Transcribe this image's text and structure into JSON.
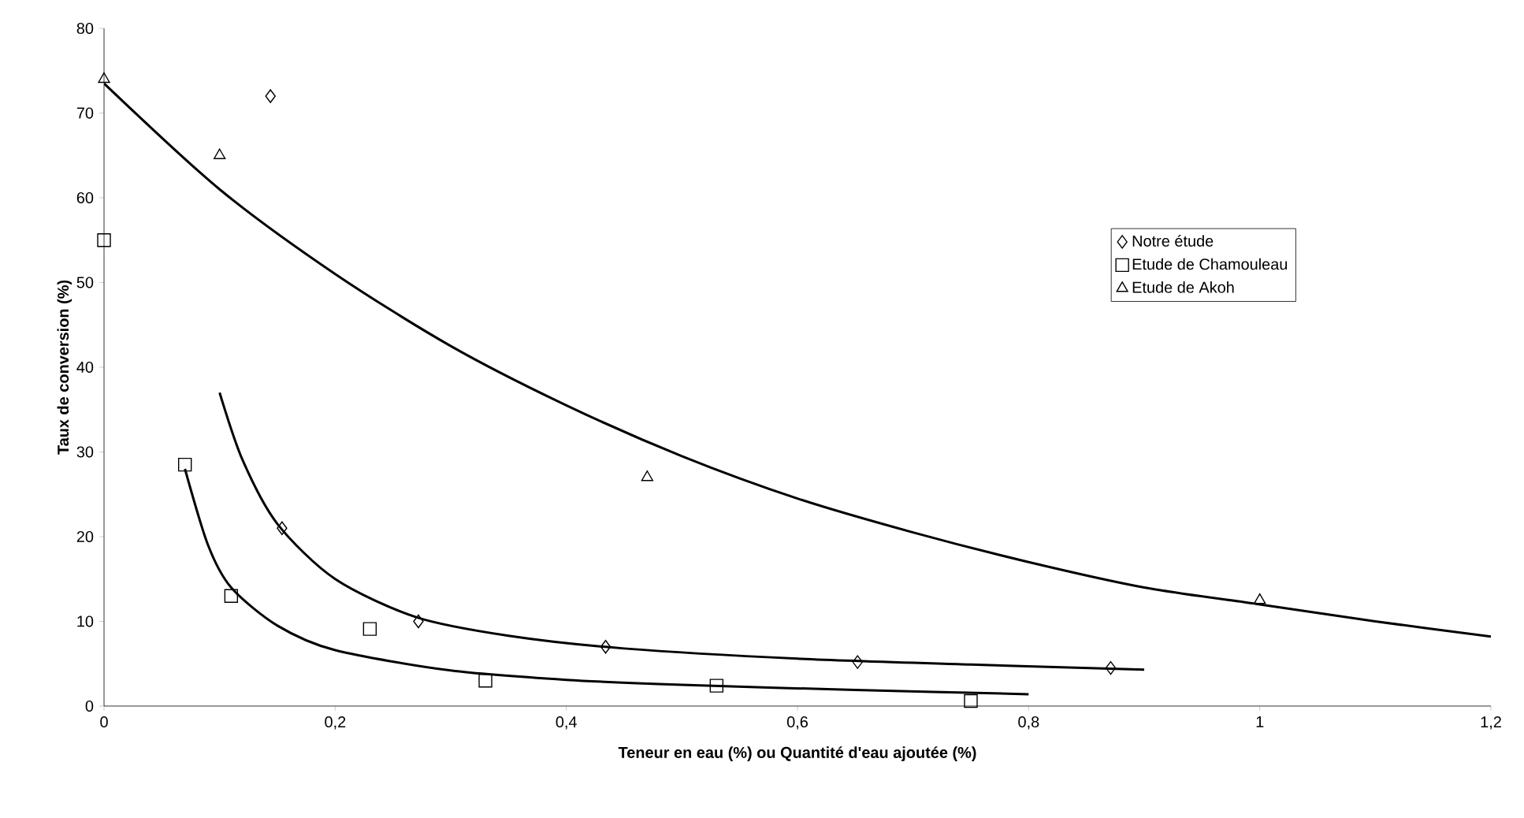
{
  "chart_data": {
    "type": "scatter",
    "xlabel": "Teneur en eau (%) ou Quantité d'eau ajoutée (%)",
    "ylabel": "Taux de conversion (%)",
    "xlim": [
      0,
      1.2
    ],
    "ylim": [
      0,
      80
    ],
    "xticks": [
      0,
      {
        "value": 0.2,
        "label": "0,2"
      },
      {
        "value": 0.4,
        "label": "0,4"
      },
      {
        "value": 0.6,
        "label": "0,6"
      },
      {
        "value": 0.8,
        "label": "0,8"
      },
      1,
      {
        "value": 1.2,
        "label": "1,2"
      }
    ],
    "yticks": [
      0,
      10,
      20,
      30,
      40,
      50,
      60,
      70,
      80
    ],
    "legend": "right",
    "grid": false,
    "series": [
      {
        "name": "Notre étude",
        "marker": "diamond",
        "color": "#000000",
        "x": [
          0.144,
          0.154,
          0.272,
          0.434,
          0.652,
          0.871
        ],
        "values": [
          72,
          21,
          10,
          7,
          5.2,
          4.5
        ]
      },
      {
        "name": "Etude de Chamouleau",
        "marker": "square",
        "color": "#000000",
        "x": [
          0,
          0.07,
          0.11,
          0.23,
          0.33,
          0.53,
          0.75
        ],
        "values": [
          55,
          28.5,
          13,
          9.1,
          3,
          2.4,
          0.6
        ]
      },
      {
        "name": "Etude de Akoh",
        "marker": "triangle",
        "color": "#000000",
        "x": [
          0,
          0.1,
          0.47,
          1
        ],
        "values": [
          74,
          65,
          27,
          12.5
        ]
      },
      {
        "type": "line",
        "marker": "none",
        "color": "#000000",
        "x": [
          0.1,
          0.12,
          0.15,
          0.2,
          0.27,
          0.35,
          0.45,
          0.6,
          0.75,
          0.9
        ],
        "values": [
          37,
          29,
          21.5,
          15,
          10.5,
          8.3,
          6.8,
          5.6,
          4.9,
          4.3
        ]
      },
      {
        "type": "line",
        "marker": "none",
        "color": "#000000",
        "x": [
          0.07,
          0.09,
          0.11,
          0.15,
          0.2,
          0.3,
          0.4,
          0.5,
          0.65,
          0.8
        ],
        "values": [
          28,
          19,
          14,
          9.5,
          6.6,
          4.2,
          3.1,
          2.5,
          1.9,
          1.4
        ]
      },
      {
        "type": "line",
        "marker": "none",
        "color": "#000000",
        "x": [
          0,
          0.1,
          0.2,
          0.3,
          0.4,
          0.5,
          0.6,
          0.7,
          0.8,
          0.9,
          1.0,
          1.1,
          1.2
        ],
        "values": [
          73.5,
          61,
          51,
          42.5,
          35.5,
          29.5,
          24.5,
          20.5,
          17,
          14,
          12,
          10,
          8.2
        ]
      }
    ]
  }
}
